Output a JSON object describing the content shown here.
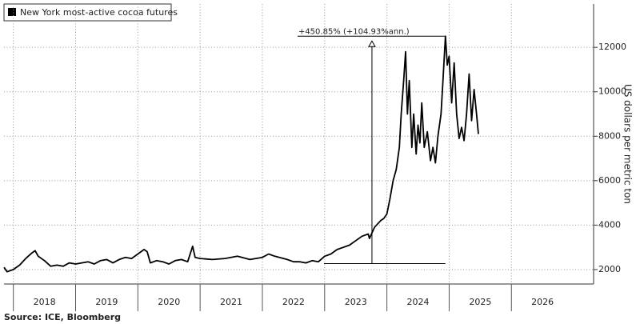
{
  "chart_data": {
    "type": "line",
    "legend": "New York most-active cocoa futures",
    "y_label": "US dollars per metric ton",
    "source": "Source: ICE, Bloomberg",
    "annotation": {
      "text": "+450.85% (+104.93%ann.)",
      "x_start": 2022.99,
      "x_arrow": 2023.76,
      "x_end": 2024.94,
      "low": 2270,
      "high": 12500
    },
    "grid": true,
    "color": "#000000",
    "xlim": [
      2017.85,
      2027.32
    ],
    "xticks": [
      {
        "value": 2018.5,
        "label": "2018"
      },
      {
        "value": 2019.5,
        "label": "2019"
      },
      {
        "value": 2020.5,
        "label": "2020"
      },
      {
        "value": 2021.5,
        "label": "2021"
      },
      {
        "value": 2022.5,
        "label": "2022"
      },
      {
        "value": 2023.5,
        "label": "2023"
      },
      {
        "value": 2024.5,
        "label": "2024"
      },
      {
        "value": 2025.5,
        "label": "2025"
      },
      {
        "value": 2026.5,
        "label": "2026"
      }
    ],
    "ylim": [
      1350,
      13950
    ],
    "yticks": [
      2000,
      4000,
      6000,
      8000,
      10000,
      12000
    ],
    "x": [
      2017.85,
      2017.9,
      2017.95,
      2018.0,
      2018.1,
      2018.2,
      2018.3,
      2018.35,
      2018.4,
      2018.5,
      2018.6,
      2018.7,
      2018.8,
      2018.9,
      2019.0,
      2019.1,
      2019.2,
      2019.3,
      2019.4,
      2019.5,
      2019.6,
      2019.7,
      2019.8,
      2019.9,
      2020.0,
      2020.1,
      2020.15,
      2020.2,
      2020.3,
      2020.4,
      2020.5,
      2020.6,
      2020.7,
      2020.8,
      2020.88,
      2020.92,
      2021.0,
      2021.2,
      2021.4,
      2021.6,
      2021.8,
      2022.0,
      2022.1,
      2022.2,
      2022.4,
      2022.5,
      2022.6,
      2022.7,
      2022.8,
      2022.9,
      2023.0,
      2023.1,
      2023.2,
      2023.3,
      2023.4,
      2023.5,
      2023.6,
      2023.7,
      2023.72,
      2023.8,
      2023.9,
      2023.95,
      2024.0,
      2024.05,
      2024.1,
      2024.15,
      2024.2,
      2024.23,
      2024.27,
      2024.3,
      2024.33,
      2024.36,
      2024.4,
      2024.43,
      2024.47,
      2024.5,
      2024.53,
      2024.56,
      2024.6,
      2024.65,
      2024.7,
      2024.74,
      2024.78,
      2024.82,
      2024.87,
      2024.9,
      2024.94,
      2024.97,
      2025.0,
      2025.04,
      2025.08,
      2025.12,
      2025.16,
      2025.2,
      2025.24,
      2025.28,
      2025.32,
      2025.36,
      2025.4,
      2025.44,
      2025.47
    ],
    "values": [
      2100,
      1900,
      1950,
      2000,
      2200,
      2500,
      2750,
      2850,
      2600,
      2400,
      2150,
      2200,
      2150,
      2300,
      2250,
      2300,
      2350,
      2250,
      2400,
      2450,
      2300,
      2450,
      2550,
      2500,
      2700,
      2900,
      2800,
      2300,
      2400,
      2350,
      2250,
      2400,
      2450,
      2350,
      3050,
      2550,
      2500,
      2450,
      2500,
      2600,
      2450,
      2550,
      2700,
      2600,
      2450,
      2350,
      2350,
      2300,
      2400,
      2350,
      2600,
      2700,
      2900,
      3000,
      3100,
      3300,
      3500,
      3600,
      3400,
      3900,
      4200,
      4300,
      4500,
      5200,
      6000,
      6500,
      7500,
      9000,
      10500,
      11800,
      9000,
      10500,
      7500,
      9000,
      7200,
      8500,
      7700,
      9500,
      7500,
      8200,
      6900,
      7500,
      6800,
      8000,
      9000,
      10500,
      12500,
      11200,
      11600,
      9500,
      11300,
      9000,
      7900,
      8400,
      7800,
      9000,
      10800,
      8700,
      10100,
      9000,
      8100
    ]
  }
}
